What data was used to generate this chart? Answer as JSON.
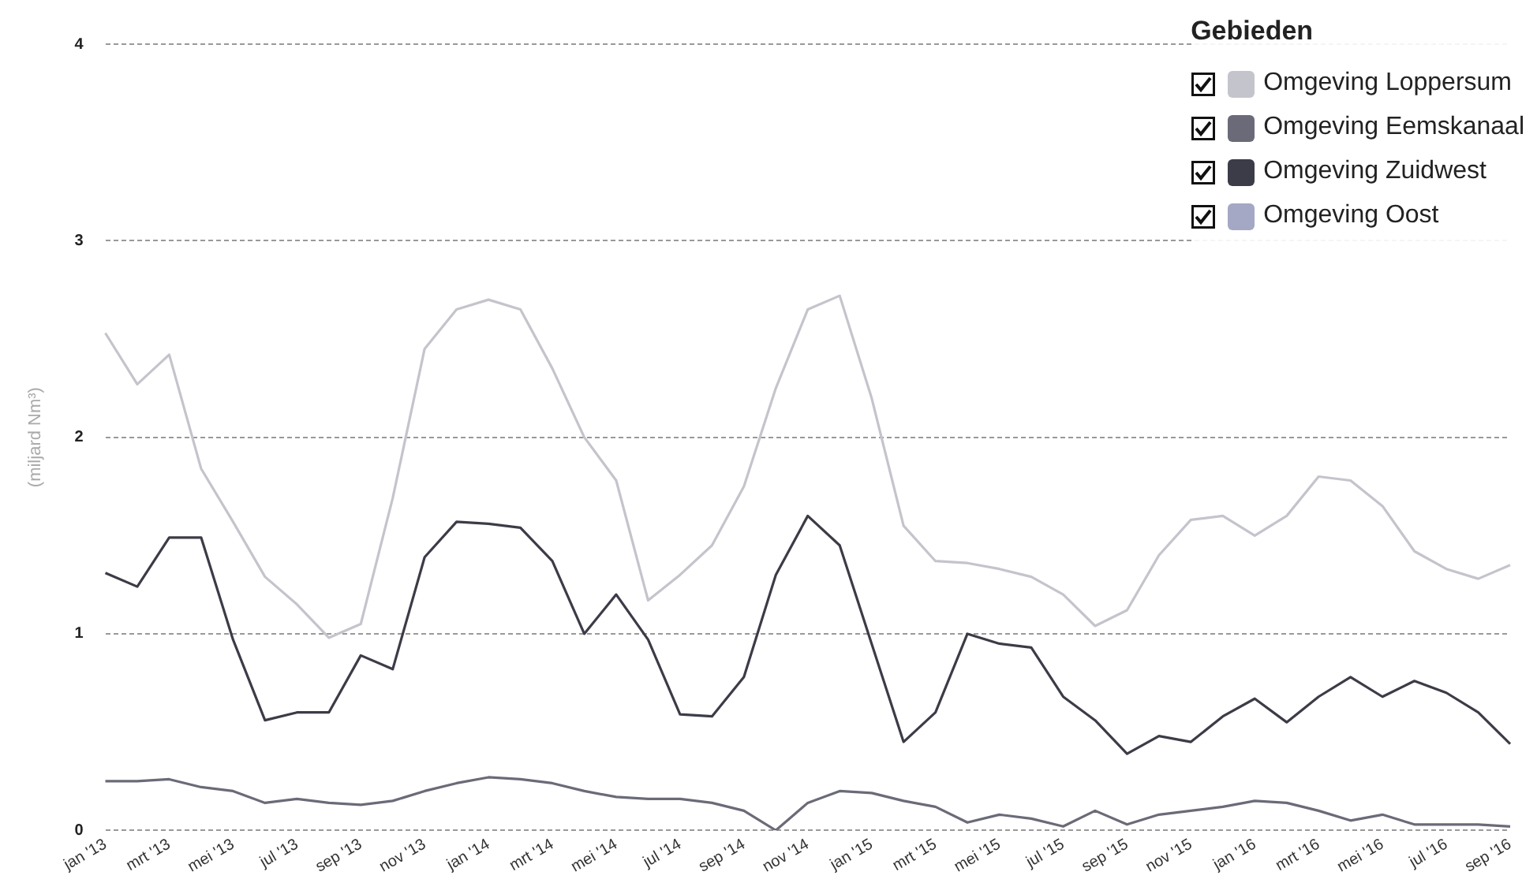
{
  "chart_data": {
    "type": "line",
    "ylabel": "(miljard Nm³)",
    "legend_title": "Gebieden",
    "categories": [
      "jan '13",
      null,
      "mrt '13",
      null,
      "mei '13",
      null,
      "jul '13",
      null,
      "sep '13",
      null,
      "nov '13",
      null,
      "jan '14",
      null,
      "mrt '14",
      null,
      "mei '14",
      null,
      "jul '14",
      null,
      "sep '14",
      null,
      "nov '14",
      null,
      "jan '15",
      null,
      "mrt '15",
      null,
      "mei '15",
      null,
      "jul '15",
      null,
      "sep '15",
      null,
      "nov '15",
      null,
      "jan '16",
      null,
      "mrt '16",
      null,
      "mei '16",
      null,
      "jul '16",
      null,
      "sep '16"
    ],
    "series": [
      {
        "name": "Omgeving Loppersum",
        "color": "#c4c4cc",
        "values": [
          2.53,
          2.27,
          2.42,
          1.84,
          1.57,
          1.29,
          1.15,
          0.98,
          1.05,
          1.69,
          2.45,
          2.65,
          2.7,
          2.65,
          2.35,
          2.0,
          1.78,
          1.17,
          1.3,
          1.45,
          1.75,
          2.25,
          2.65,
          2.72,
          2.2,
          1.55,
          1.37,
          1.36,
          1.33,
          1.29,
          1.2,
          1.04,
          1.12,
          1.4,
          1.58,
          1.6,
          1.5,
          1.6,
          1.8,
          1.78,
          1.65,
          1.42,
          1.33,
          1.28,
          1.35
        ]
      },
      {
        "name": "Omgeving Eemskanaal",
        "color": "#6a6a78",
        "values": [
          0.25,
          0.25,
          0.26,
          0.22,
          0.2,
          0.14,
          0.16,
          0.14,
          0.13,
          0.15,
          0.2,
          0.24,
          0.27,
          0.26,
          0.24,
          0.2,
          0.17,
          0.16,
          0.16,
          0.14,
          0.1,
          0.0,
          0.14,
          0.2,
          0.19,
          0.15,
          0.12,
          0.04,
          0.08,
          0.06,
          0.02,
          0.1,
          0.03,
          0.08,
          0.1,
          0.12,
          0.15,
          0.14,
          0.1,
          0.05,
          0.08,
          0.03,
          0.03,
          0.03,
          0.02
        ]
      },
      {
        "name": "Omgeving Zuidwest",
        "color": "#3c3c48",
        "values": [
          1.31,
          1.24,
          1.49,
          1.49,
          0.97,
          0.56,
          0.6,
          0.6,
          0.89,
          0.82,
          1.39,
          1.57,
          1.56,
          1.54,
          1.37,
          1.0,
          1.2,
          0.97,
          0.59,
          0.58,
          0.78,
          1.3,
          1.6,
          1.45,
          0.95,
          0.45,
          0.6,
          1.0,
          0.95,
          0.93,
          0.68,
          0.56,
          0.39,
          0.48,
          0.45,
          0.58,
          0.67,
          0.55,
          0.68,
          0.78,
          0.68,
          0.76,
          0.7,
          0.6,
          0.44
        ]
      },
      {
        "name": "Omgeving Oost",
        "color": "#a4a8c4",
        "values": [
          null,
          null,
          null,
          null,
          null,
          null,
          null,
          null,
          null,
          null,
          null,
          null,
          null,
          null,
          null,
          null,
          null,
          null,
          null,
          null,
          null,
          null,
          null,
          null,
          null,
          null,
          null,
          null,
          null,
          null,
          null,
          null,
          null,
          null,
          null,
          null,
          null,
          null,
          null,
          null,
          null,
          null,
          null,
          null,
          null
        ]
      }
    ],
    "ylim": [
      0,
      4
    ],
    "yticks": [
      0,
      1,
      2,
      3,
      4
    ],
    "grid": "y",
    "legend": "top right",
    "marker": "none",
    "line_style": "solid"
  }
}
